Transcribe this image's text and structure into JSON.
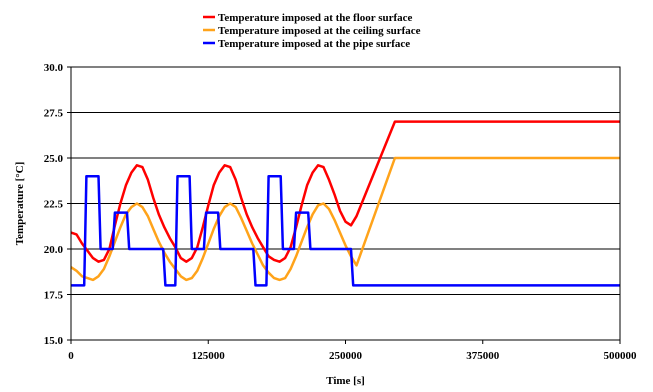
{
  "chart_data": {
    "type": "line",
    "xlabel": "Time [s]",
    "ylabel": "Temperature [°C]",
    "xlim": [
      0,
      500000
    ],
    "ylim": [
      15.0,
      30.0
    ],
    "x_ticks": [
      "0",
      "125000",
      "250000",
      "375000",
      "500000"
    ],
    "y_ticks": [
      "15.0",
      "17.5",
      "20.0",
      "22.5",
      "25.0",
      "27.5",
      "30.0"
    ],
    "grid": "horizontal",
    "legend": "top-center",
    "series": [
      {
        "name": "Temperature imposed at the floor surface",
        "color": "#ff0000",
        "x": [
          0,
          5000,
          10000,
          15000,
          20000,
          25000,
          30000,
          35000,
          40000,
          45000,
          50000,
          55000,
          60000,
          65000,
          70000,
          75000,
          80000,
          85000,
          90000,
          95000,
          100000,
          105000,
          110000,
          115000,
          120000,
          125000,
          130000,
          135000,
          140000,
          145000,
          150000,
          155000,
          160000,
          165000,
          170000,
          175000,
          180000,
          185000,
          190000,
          195000,
          200000,
          205000,
          210000,
          215000,
          220000,
          225000,
          230000,
          235000,
          240000,
          245000,
          250000,
          255000,
          260000,
          295000,
          500000
        ],
        "y": [
          20.9,
          20.8,
          20.3,
          19.9,
          19.5,
          19.3,
          19.4,
          20.0,
          21.3,
          22.5,
          23.5,
          24.2,
          24.6,
          24.5,
          23.8,
          22.8,
          21.9,
          21.2,
          20.6,
          20.1,
          19.5,
          19.3,
          19.5,
          20.1,
          21.2,
          22.4,
          23.5,
          24.2,
          24.6,
          24.5,
          23.8,
          22.8,
          21.9,
          21.2,
          20.6,
          20.1,
          19.6,
          19.4,
          19.3,
          19.5,
          20.1,
          21.2,
          22.4,
          23.5,
          24.2,
          24.6,
          24.5,
          23.8,
          23.0,
          22.1,
          21.5,
          21.3,
          21.8,
          27.0,
          27.0
        ]
      },
      {
        "name": "Temperature imposed at the ceiling surface",
        "color": "#ffa31a",
        "x": [
          0,
          5000,
          10000,
          15000,
          20000,
          25000,
          30000,
          35000,
          40000,
          45000,
          50000,
          55000,
          60000,
          65000,
          70000,
          75000,
          80000,
          85000,
          90000,
          95000,
          100000,
          105000,
          110000,
          115000,
          120000,
          125000,
          130000,
          135000,
          140000,
          145000,
          150000,
          155000,
          160000,
          165000,
          170000,
          175000,
          180000,
          185000,
          190000,
          195000,
          200000,
          205000,
          210000,
          215000,
          220000,
          225000,
          230000,
          235000,
          240000,
          245000,
          250000,
          255000,
          260000,
          295000,
          500000
        ],
        "y": [
          19.0,
          18.8,
          18.5,
          18.4,
          18.3,
          18.5,
          18.9,
          19.6,
          20.4,
          21.2,
          21.9,
          22.3,
          22.5,
          22.3,
          21.8,
          21.1,
          20.4,
          19.8,
          19.3,
          18.9,
          18.5,
          18.3,
          18.4,
          18.8,
          19.5,
          20.3,
          21.1,
          21.8,
          22.3,
          22.5,
          22.3,
          21.7,
          21.0,
          20.3,
          19.7,
          19.1,
          18.7,
          18.4,
          18.3,
          18.4,
          18.9,
          19.6,
          20.4,
          21.2,
          21.9,
          22.4,
          22.5,
          22.2,
          21.6,
          20.9,
          20.2,
          19.6,
          19.1,
          25.0,
          25.0
        ]
      },
      {
        "name": "Temperature imposed at the pipe surface",
        "color": "#0000ff",
        "x": [
          0,
          12000,
          14000,
          25000,
          27000,
          38000,
          40000,
          51000,
          53000,
          84000,
          86000,
          95000,
          97000,
          108000,
          110000,
          121000,
          123000,
          134000,
          136000,
          166000,
          168000,
          178000,
          180000,
          191000,
          193000,
          203000,
          205000,
          216000,
          218000,
          228000,
          230000,
          255000,
          257000,
          500000
        ],
        "y": [
          18.0,
          18.0,
          24.0,
          24.0,
          20.0,
          20.0,
          22.0,
          22.0,
          20.0,
          20.0,
          18.0,
          18.0,
          24.0,
          24.0,
          20.0,
          20.0,
          22.0,
          22.0,
          20.0,
          20.0,
          18.0,
          18.0,
          24.0,
          24.0,
          20.0,
          20.0,
          22.0,
          22.0,
          20.0,
          20.0,
          20.0,
          20.0,
          18.0,
          18.0
        ]
      }
    ]
  }
}
